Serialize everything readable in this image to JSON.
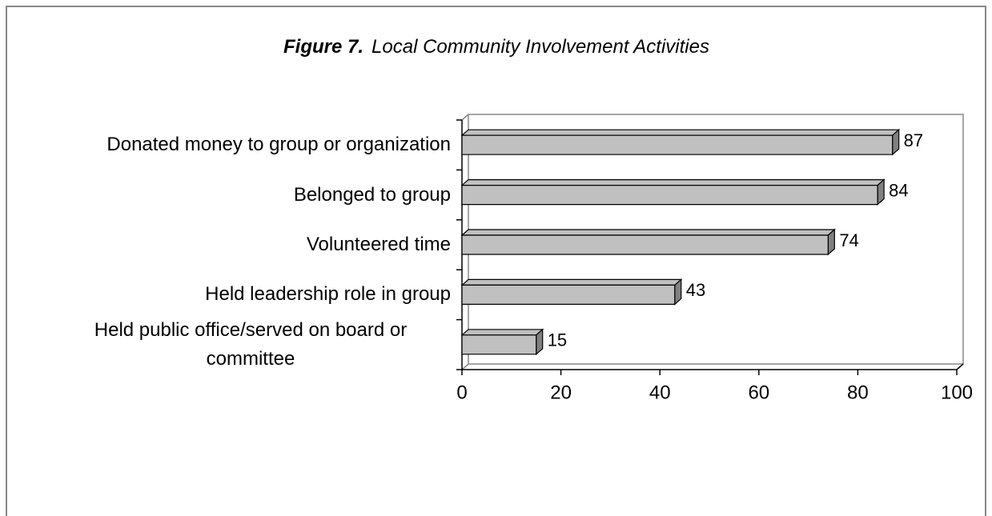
{
  "chart_data": {
    "type": "bar",
    "orientation": "horizontal",
    "figure_label": "Figure 7.",
    "title": "Local Community Involvement Activities",
    "categories": [
      "Donated money to group or organization",
      "Belonged to group",
      "Volunteered time",
      "Held leadership role in group",
      "Held public office/served on board or committee"
    ],
    "values": [
      87,
      84,
      74,
      43,
      15
    ],
    "color": "#c0c0c0",
    "xlim": [
      0,
      100
    ],
    "xticks": [
      0,
      20,
      40,
      60,
      80,
      100
    ],
    "grid": false
  }
}
